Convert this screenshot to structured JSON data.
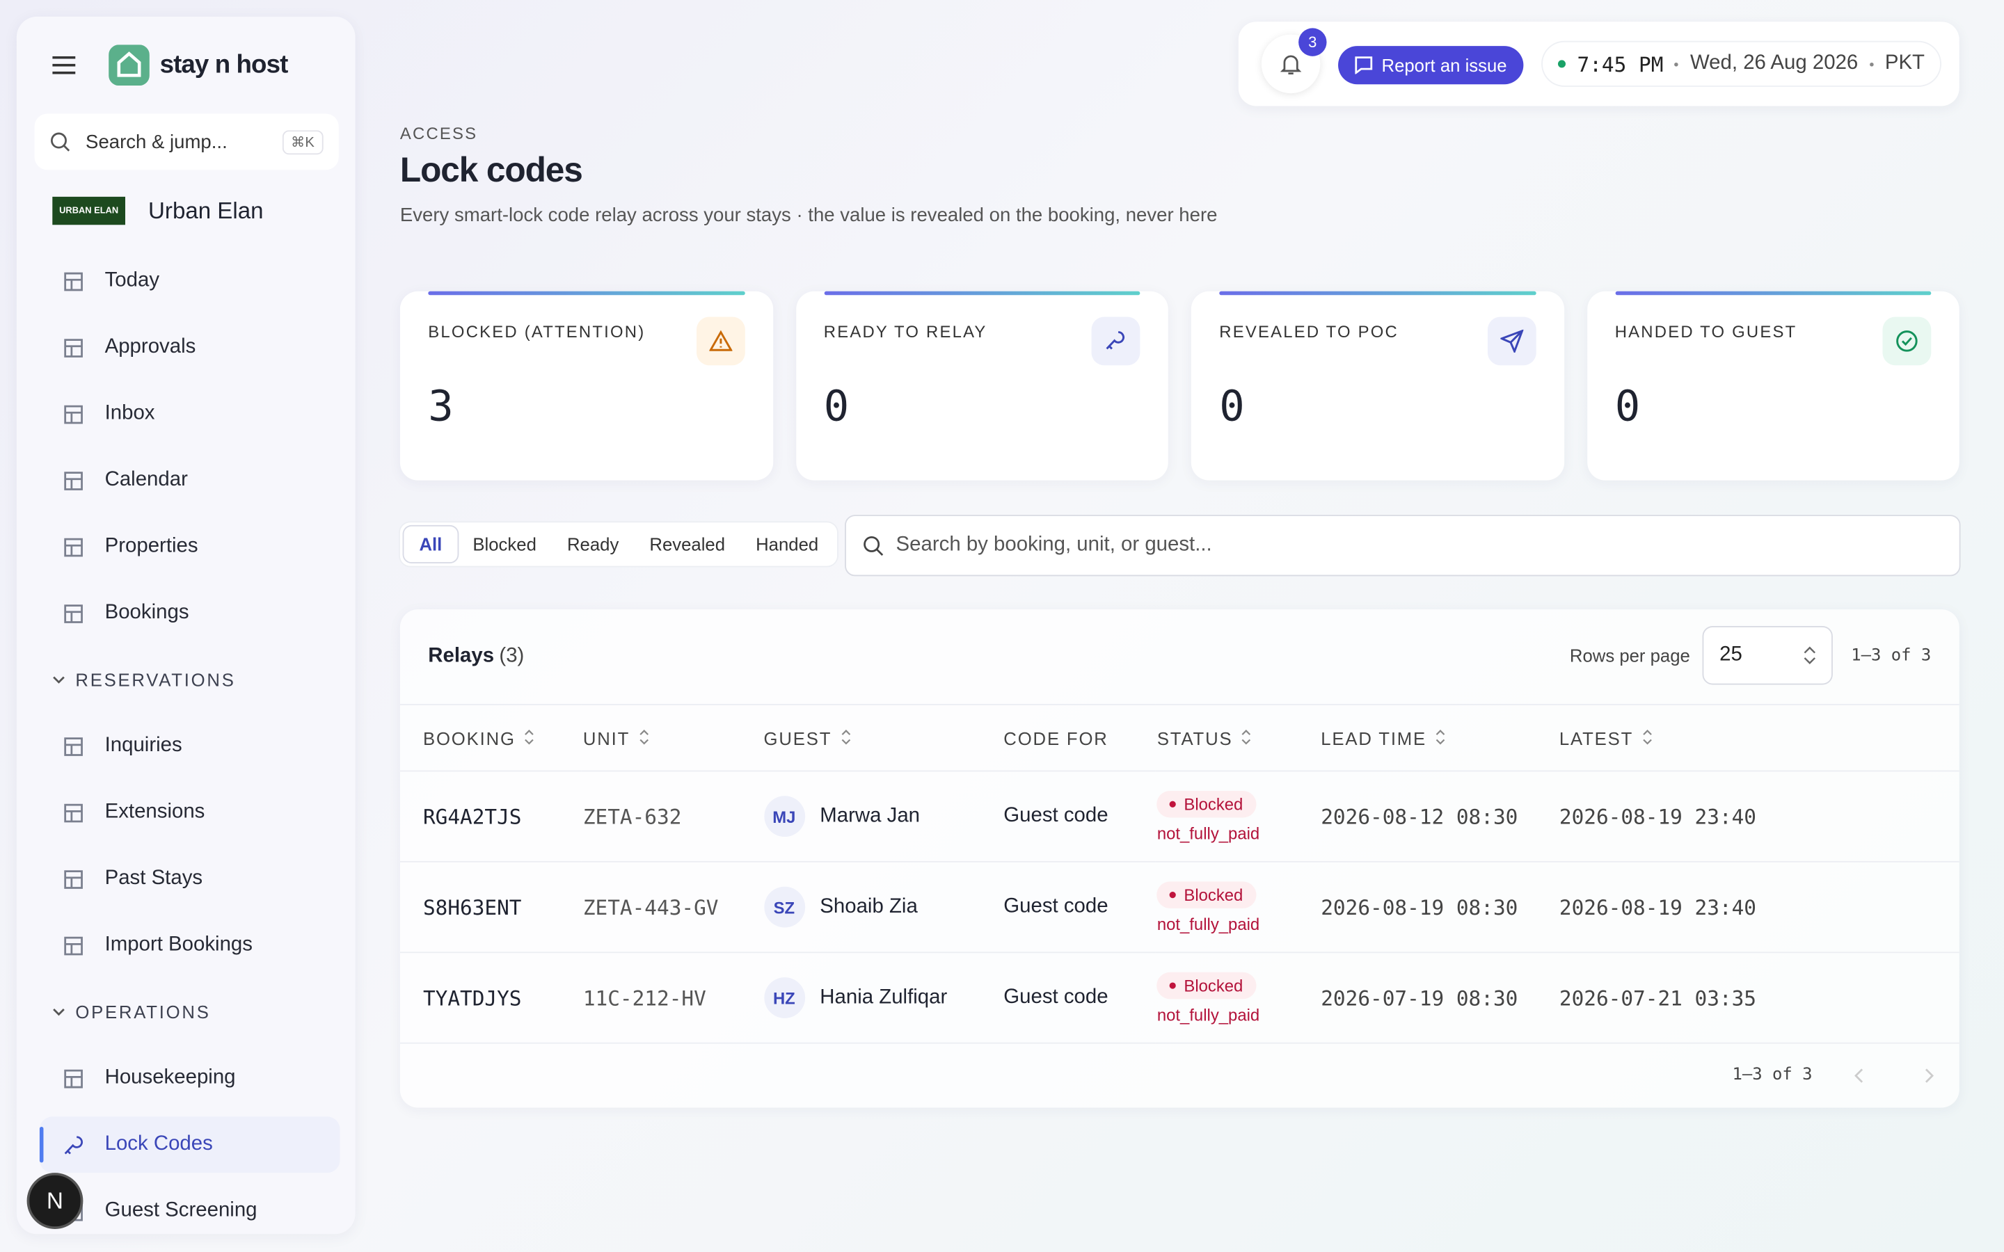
{
  "sidebar": {
    "brand": "stay n host",
    "search": "Search & jump...",
    "shortcut": "⌘K",
    "org_logo": "URBAN ELAN",
    "org_name": "Urban Elan",
    "nav": [
      "Today",
      "Approvals",
      "Inbox",
      "Calendar",
      "Properties",
      "Bookings"
    ],
    "sections": [
      {
        "title": "RESERVATIONS",
        "items": [
          "Inquiries",
          "Extensions",
          "Past Stays",
          "Import Bookings"
        ]
      },
      {
        "title": "OPERATIONS",
        "items": [
          "Housekeeping",
          "Lock Codes",
          "Guest Screening"
        ]
      }
    ],
    "active": "Lock Codes",
    "avatar": "N"
  },
  "topbar": {
    "notifications": "3",
    "report": "Report an issue",
    "time": "7:45 PM",
    "date": "Wed, 26 Aug 2026",
    "timezone": "PKT"
  },
  "header": {
    "eyebrow": "ACCESS",
    "title": "Lock codes",
    "description": "Every smart-lock code relay across your stays · the value is revealed on the booking, never here"
  },
  "stats": [
    {
      "label": "BLOCKED (ATTENTION)",
      "value": "3"
    },
    {
      "label": "READY TO RELAY",
      "value": "0"
    },
    {
      "label": "REVEALED TO POC",
      "value": "0"
    },
    {
      "label": "HANDED TO GUEST",
      "value": "0"
    }
  ],
  "filters": [
    "All",
    "Blocked",
    "Ready",
    "Revealed",
    "Handed"
  ],
  "search": "Search by booking, unit, or guest...",
  "table": {
    "title": "Relays",
    "count": "(3)",
    "rows_per_page_label": "Rows per page",
    "rows_per_page": "25",
    "range": "1–3 of 3",
    "columns": [
      "BOOKING",
      "UNIT",
      "GUEST",
      "CODE FOR",
      "STATUS",
      "LEAD TIME",
      "LATEST"
    ],
    "rows": [
      {
        "booking": "RG4A2TJS",
        "unit": "ZETA-632",
        "initials": "MJ",
        "guest": "Marwa Jan",
        "code_for": "Guest code",
        "status": "Blocked",
        "reason": "not_fully_paid",
        "lead_time": "2026-08-12 08:30",
        "latest": "2026-08-19 23:40"
      },
      {
        "booking": "S8H63ENT",
        "unit": "ZETA-443-GV",
        "initials": "SZ",
        "guest": "Shoaib Zia",
        "code_for": "Guest code",
        "status": "Blocked",
        "reason": "not_fully_paid",
        "lead_time": "2026-08-19 08:30",
        "latest": "2026-08-19 23:40"
      },
      {
        "booking": "TYATDJYS",
        "unit": "11C-212-HV",
        "initials": "HZ",
        "guest": "Hania Zulfiqar",
        "code_for": "Guest code",
        "status": "Blocked",
        "reason": "not_fully_paid",
        "lead_time": "2026-07-19 08:30",
        "latest": "2026-07-21 03:35"
      }
    ],
    "footer_range": "1–3 of 3"
  }
}
